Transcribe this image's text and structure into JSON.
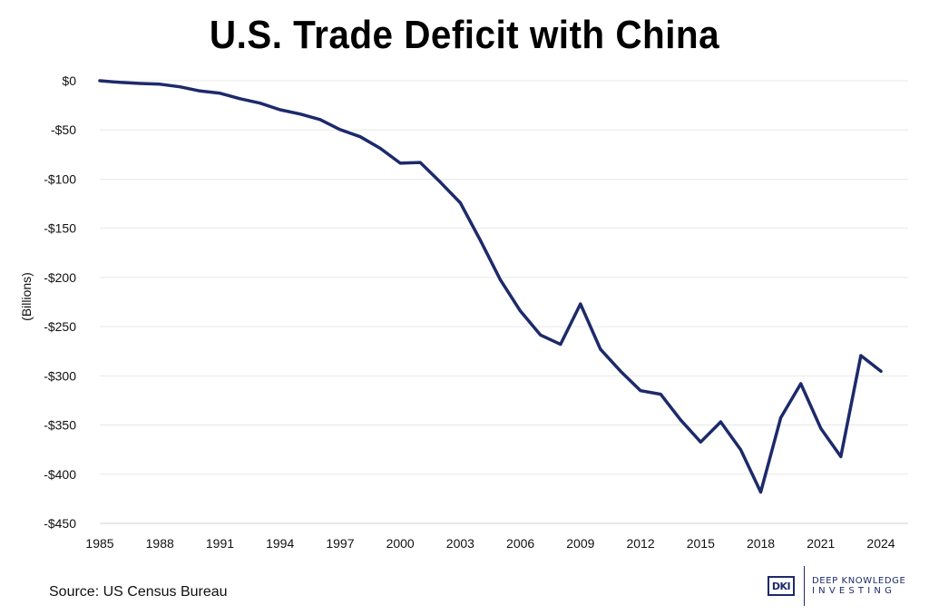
{
  "title": "U.S. Trade Deficit with China",
  "source": "Source: US Census Bureau",
  "logo": {
    "mark": "DKI",
    "line1": "DEEP KNOWLEDGE",
    "line2": "INVESTING"
  },
  "colors": {
    "line": "#1d2a6b",
    "grid": "#e8e8e8"
  },
  "chart_data": {
    "type": "line",
    "title": "U.S. Trade Deficit with China",
    "ylabel": "(Billions)",
    "xlabel": "",
    "ylim": [
      -450,
      0
    ],
    "xlim": [
      1985,
      2024
    ],
    "grid": true,
    "y_ticks": [
      0,
      -50,
      -100,
      -150,
      -200,
      -250,
      -300,
      -350,
      -400,
      -450
    ],
    "y_tick_labels": [
      "$0",
      "-$50",
      "-$100",
      "-$150",
      "-$200",
      "-$250",
      "-$300",
      "-$350",
      "-$400",
      "-$450"
    ],
    "x_ticks": [
      1985,
      1988,
      1991,
      1994,
      1997,
      2000,
      2003,
      2006,
      2009,
      2012,
      2015,
      2018,
      2021,
      2024
    ],
    "x_tick_labels": [
      "1985",
      "1988",
      "1991",
      "1994",
      "1997",
      "2000",
      "2003",
      "2006",
      "2009",
      "2012",
      "2015",
      "2018",
      "2021",
      "2024"
    ],
    "x": [
      1985,
      1986,
      1987,
      1988,
      1989,
      1990,
      1991,
      1992,
      1993,
      1994,
      1995,
      1996,
      1997,
      1998,
      1999,
      2000,
      2001,
      2002,
      2003,
      2004,
      2005,
      2006,
      2007,
      2008,
      2009,
      2010,
      2011,
      2012,
      2013,
      2014,
      2015,
      2016,
      2017,
      2018,
      2019,
      2020,
      2021,
      2022,
      2023,
      2024
    ],
    "y": [
      0,
      -1.7,
      -2.8,
      -3.5,
      -6.2,
      -10.4,
      -12.7,
      -18.3,
      -22.8,
      -29.5,
      -33.8,
      -39.5,
      -49.7,
      -56.9,
      -68.7,
      -83.8,
      -83.1,
      -103.1,
      -124.1,
      -162.3,
      -202.3,
      -234.1,
      -258.5,
      -268.0,
      -226.9,
      -273.0,
      -295.3,
      -315.1,
      -318.7,
      -344.8,
      -367.3,
      -346.8,
      -375.2,
      -418.2,
      -342.6,
      -308.0,
      -353.5,
      -382.1,
      -279.4,
      -295.4
    ]
  }
}
